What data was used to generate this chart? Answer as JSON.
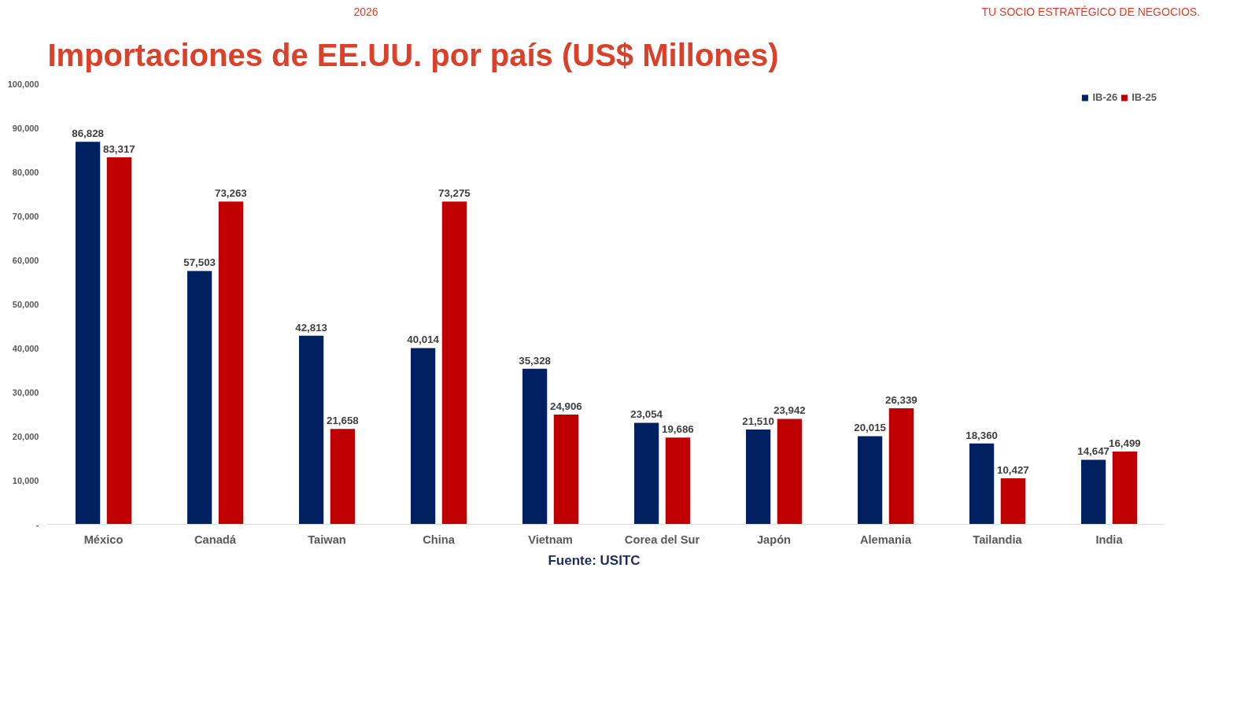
{
  "chart_data": {
    "type": "bar",
    "title": "Importaciones de EE.UU. por país (US$ Millones)",
    "categories": [
      "México",
      "Canadá",
      "Taiwan",
      "China",
      "Vietnam",
      "Corea del Sur",
      "Japón",
      "Alemania",
      "Tailandia",
      "India"
    ],
    "series": [
      {
        "name": "IB-26",
        "color": "#002060",
        "values": [
          86828,
          57503,
          42813,
          40014,
          35328,
          23054,
          21510,
          20015,
          18360,
          14647
        ],
        "value_labels": [
          "86,828",
          "57,503",
          "42,813",
          "40,014",
          "35,328",
          "23,054",
          "21,510",
          "20,015",
          "18,360",
          "14,647"
        ]
      },
      {
        "name": "IB-25",
        "color": "#c00000",
        "values": [
          83317,
          73263,
          21658,
          73275,
          24906,
          19686,
          23942,
          26339,
          10427,
          16499
        ],
        "value_labels": [
          "83,317",
          "73,263",
          "21,658",
          "73,275",
          "24,906",
          "19,686",
          "23,942",
          "26,339",
          "10,427",
          "16,499"
        ]
      }
    ],
    "ylim": [
      0,
      100000
    ],
    "yticks": [
      {
        "value": 0,
        "label": "-"
      },
      {
        "value": 10000,
        "label": "10,000"
      },
      {
        "value": 20000,
        "label": "20,000"
      },
      {
        "value": 30000,
        "label": "30,000"
      },
      {
        "value": 40000,
        "label": "40,000"
      },
      {
        "value": 50000,
        "label": "50,000"
      },
      {
        "value": 60000,
        "label": "60,000"
      },
      {
        "value": 70000,
        "label": "70,000"
      },
      {
        "value": 80000,
        "label": "80,000"
      },
      {
        "value": 90000,
        "label": "90,000"
      },
      {
        "value": 100000,
        "label": "100,000"
      }
    ],
    "grid": false,
    "legend": "top right",
    "annotations": [
      "2026",
      "TU SOCIO ESTRATÉGICO DE NEGOCIOS.",
      "Fuente: USITC"
    ]
  }
}
